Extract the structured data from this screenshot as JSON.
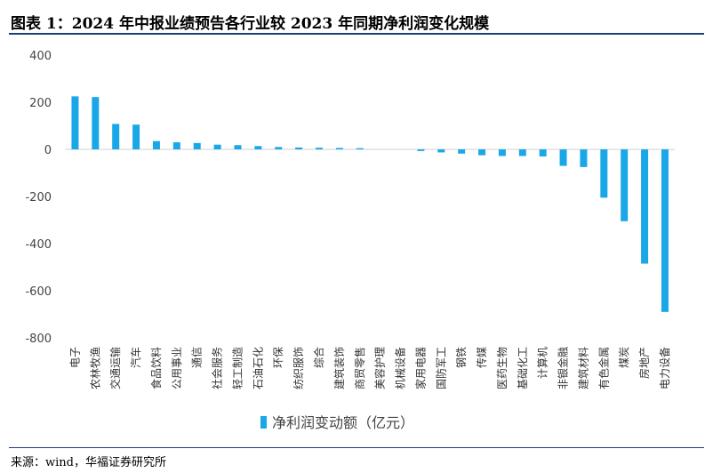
{
  "header": {
    "title": "图表 1：2024 年中报业绩预告各行业较 2023 年同期净利润变化规模"
  },
  "footer": {
    "source": "来源：wind，华福证券研究所"
  },
  "colors": {
    "bar": "#1aa7e8",
    "rule": "#1f3f7a"
  },
  "chart_data": {
    "type": "bar",
    "title": "",
    "xlabel": "",
    "ylabel": "",
    "ylim": [
      -800,
      400
    ],
    "yticks": [
      400,
      200,
      0,
      -200,
      -400,
      -600,
      -800
    ],
    "legend": "bottom",
    "categories": [
      "电子",
      "农林牧渔",
      "交通运输",
      "汽车",
      "食品饮料",
      "公用事业",
      "通信",
      "社会服务",
      "轻工制造",
      "石油石化",
      "环保",
      "纺织服饰",
      "综合",
      "建筑装饰",
      "商贸零售",
      "美容护理",
      "机械设备",
      "家用电器",
      "国防军工",
      "钢铁",
      "传媒",
      "医药生物",
      "基础化工",
      "计算机",
      "非银金融",
      "建筑材料",
      "有色金属",
      "煤炭",
      "房地产",
      "电力设备"
    ],
    "series": [
      {
        "name": "净利润变动额（亿元）",
        "values": [
          225,
          222,
          108,
          105,
          35,
          30,
          27,
          20,
          18,
          14,
          10,
          8,
          7,
          6,
          5,
          0,
          0,
          -7,
          -13,
          -18,
          -25,
          -28,
          -28,
          -30,
          -70,
          -75,
          -205,
          -305,
          -485,
          -690
        ]
      }
    ]
  }
}
